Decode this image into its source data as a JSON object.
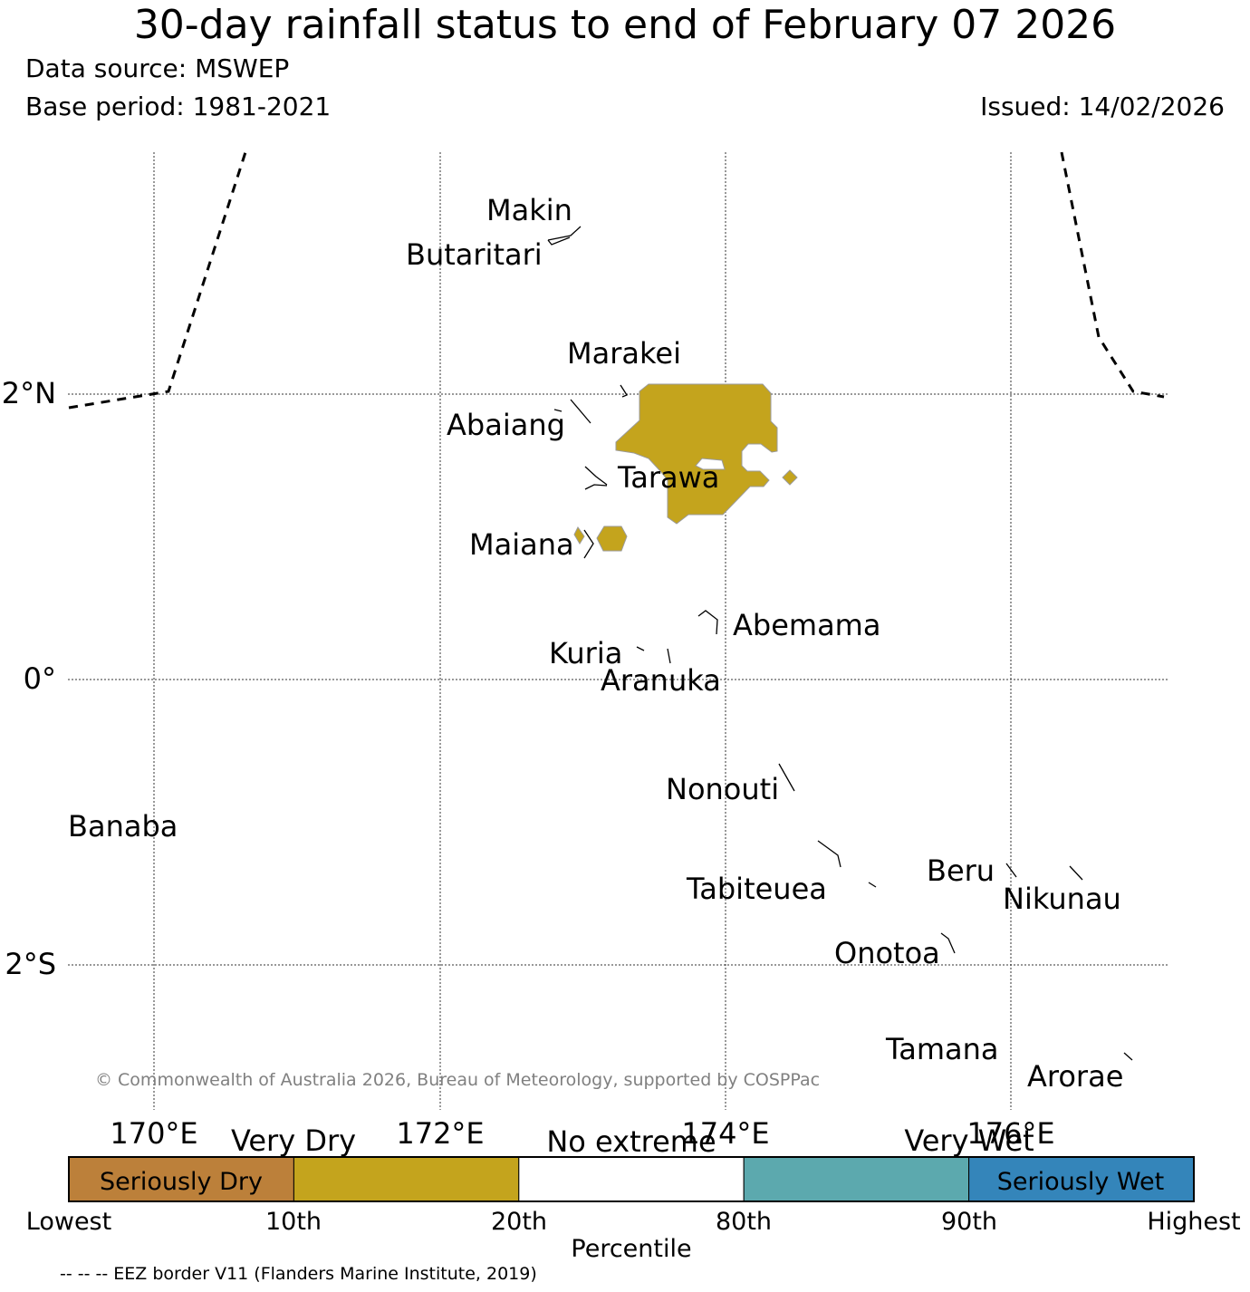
{
  "header": {
    "title": "30-day rainfall status to end of February 07 2026",
    "data_source": "Data source: MSWEP",
    "base_period": "Base period: 1981-2021",
    "issued": "Issued: 14/02/2026"
  },
  "map": {
    "lat_labels": [
      "2°N",
      "0°",
      "2°S"
    ],
    "lon_labels": [
      "170°E",
      "172°E",
      "174°E",
      "176°E"
    ],
    "islands": [
      {
        "id": "makin",
        "name": "Makin"
      },
      {
        "id": "butaritari",
        "name": "Butaritari"
      },
      {
        "id": "marakei",
        "name": "Marakei"
      },
      {
        "id": "abaiang",
        "name": "Abaiang"
      },
      {
        "id": "tarawa",
        "name": "Tarawa"
      },
      {
        "id": "maiana",
        "name": "Maiana"
      },
      {
        "id": "abemama",
        "name": "Abemama"
      },
      {
        "id": "kuria",
        "name": "Kuria"
      },
      {
        "id": "aranuka",
        "name": "Aranuka"
      },
      {
        "id": "nonouti",
        "name": "Nonouti"
      },
      {
        "id": "banaba",
        "name": "Banaba"
      },
      {
        "id": "beru",
        "name": "Beru"
      },
      {
        "id": "tabiteuea",
        "name": "Tabiteuea"
      },
      {
        "id": "nikunau",
        "name": "Nikunau"
      },
      {
        "id": "onotoa",
        "name": "Onotoa"
      },
      {
        "id": "tamana",
        "name": "Tamana"
      },
      {
        "id": "arorae",
        "name": "Arorae"
      }
    ],
    "rain_category_shown": "Very Dry",
    "copyright": "© Commonwealth of Australia 2026, Bureau of Meteorology, supported by COSPPac"
  },
  "legend": {
    "category_labels": [
      "Very Dry",
      "No extreme",
      "Very Wet"
    ],
    "segments": [
      {
        "label": "Seriously Dry",
        "color": "#bc803a"
      },
      {
        "label": "",
        "color": "#c4a41d"
      },
      {
        "label": "",
        "color": "#ffffff"
      },
      {
        "label": "",
        "color": "#5ca9ae"
      },
      {
        "label": "Seriously Wet",
        "color": "#3485ba"
      }
    ],
    "ticks": [
      "Lowest",
      "10th",
      "20th",
      "80th",
      "90th",
      "Highest"
    ],
    "axis_label": "Percentile"
  },
  "footer": {
    "eez_note": "-- -- -- EEZ border V11 (Flanders Marine Institute, 2019)"
  }
}
